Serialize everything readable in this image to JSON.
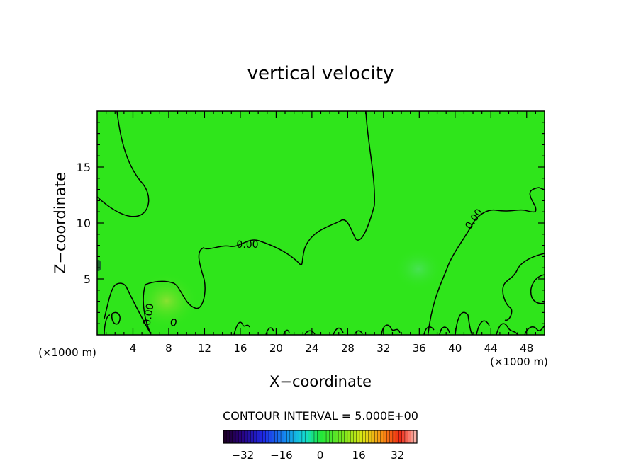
{
  "chart_data": {
    "type": "heatmap",
    "title": "vertical velocity",
    "xlabel": "X−coordinate",
    "ylabel": "Z−coordinate",
    "x_unit_left": "(×1000 m)",
    "x_unit_right": "(×1000 m)",
    "xlim": [
      0,
      50
    ],
    "ylim": [
      0,
      20
    ],
    "x_ticks": [
      4,
      8,
      12,
      16,
      20,
      24,
      28,
      32,
      36,
      40,
      44,
      48
    ],
    "y_ticks": [
      5,
      10,
      15
    ],
    "contour_labels": [
      "0.00",
      "0.00",
      "0.00"
    ],
    "contour_interval_text": "CONTOUR INTERVAL = 5.000E+00",
    "colorbar": {
      "min": -40,
      "max": 40,
      "ticks": [
        -32,
        -16,
        0,
        16,
        32
      ],
      "tick_labels": [
        "−32",
        "−16",
        "0",
        "16",
        "32"
      ]
    },
    "field_description_value": 0
  }
}
